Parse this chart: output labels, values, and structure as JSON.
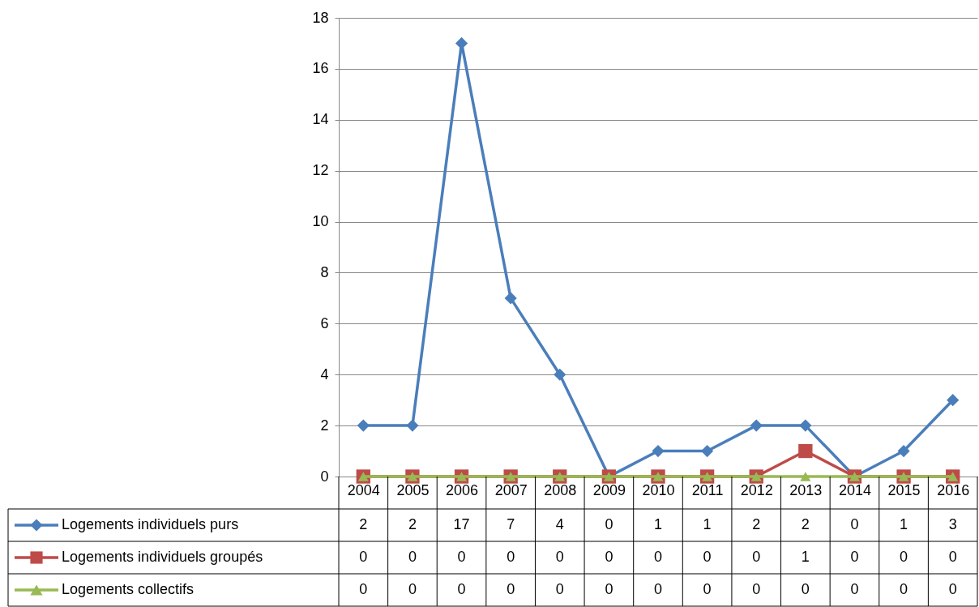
{
  "chart_data": {
    "type": "line",
    "categories": [
      "2004",
      "2005",
      "2006",
      "2007",
      "2008",
      "2009",
      "2010",
      "2011",
      "2012",
      "2013",
      "2014",
      "2015",
      "2016"
    ],
    "series": [
      {
        "name": "Logements individuels purs",
        "color": "#4a7ebb",
        "marker": "diamond",
        "values": [
          2,
          2,
          17,
          7,
          4,
          0,
          1,
          1,
          2,
          2,
          0,
          1,
          3
        ]
      },
      {
        "name": "Logements individuels groupés",
        "color": "#be4b48",
        "marker": "square",
        "values": [
          0,
          0,
          0,
          0,
          0,
          0,
          0,
          0,
          0,
          1,
          0,
          0,
          0
        ]
      },
      {
        "name": "Logements collectifs",
        "color": "#98b954",
        "marker": "triangle",
        "values": [
          0,
          0,
          0,
          0,
          0,
          0,
          0,
          0,
          0,
          0,
          0,
          0,
          0
        ]
      }
    ],
    "ylim": [
      0,
      18
    ],
    "yticks": [
      0,
      2,
      4,
      6,
      8,
      10,
      12,
      14,
      16,
      18
    ],
    "grid": "y",
    "legend": "bottom",
    "data_labels": true
  }
}
